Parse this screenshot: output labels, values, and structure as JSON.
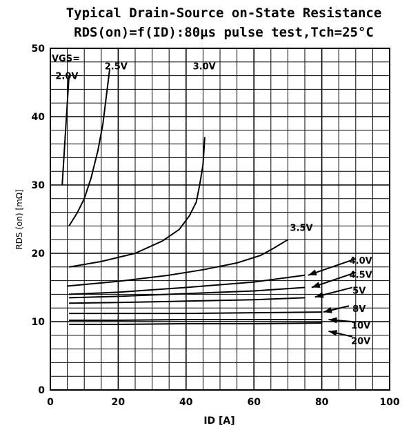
{
  "title_line1": "Typical Drain-Source on-State Resistance",
  "title_line2": "RDS(on)=f(ID):80µs pulse test,Tch=25°C",
  "chart_data": {
    "type": "line",
    "xlabel": "ID [A]",
    "ylabel": "RDS (on)  [mΩ]",
    "xlim": [
      0,
      100
    ],
    "ylim": [
      0,
      50
    ],
    "x_ticks": [
      "0",
      "20",
      "40",
      "60",
      "80",
      "100"
    ],
    "y_ticks": [
      "0",
      "10",
      "20",
      "30",
      "40",
      "50"
    ],
    "x_tick_values": [
      0,
      20,
      40,
      60,
      80,
      100
    ],
    "y_tick_values": [
      0,
      10,
      20,
      30,
      40,
      50
    ],
    "grid": true,
    "vgs_label": "VGS=",
    "series": [
      {
        "name": "2.0V",
        "x": [
          3.5,
          4.5,
          5.5
        ],
        "y": [
          30,
          38,
          46
        ]
      },
      {
        "name": "2.5V",
        "x": [
          5.5,
          8,
          10,
          12,
          14,
          15.5,
          16.5,
          17.5
        ],
        "y": [
          24,
          26,
          28,
          31,
          35,
          39,
          43,
          47
        ]
      },
      {
        "name": "3.0V",
        "x": [
          5.5,
          15,
          25,
          33,
          38,
          41,
          43,
          44,
          45,
          45.5
        ],
        "y": [
          18,
          18.8,
          20,
          21.8,
          23.5,
          25.5,
          27.5,
          30,
          33,
          37
        ]
      },
      {
        "name": "3.5V",
        "x": [
          5,
          20,
          35,
          45,
          55,
          62,
          66,
          70
        ],
        "y": [
          15.2,
          15.9,
          16.8,
          17.6,
          18.6,
          19.7,
          20.8,
          22
        ]
      },
      {
        "name": "4.0V",
        "x": [
          5.5,
          20,
          40,
          60,
          75
        ],
        "y": [
          14,
          14.3,
          15,
          15.8,
          16.8
        ]
      },
      {
        "name": "4.5V",
        "x": [
          5.5,
          20,
          40,
          60,
          75
        ],
        "y": [
          13.5,
          13.7,
          14.1,
          14.5,
          15
        ]
      },
      {
        "name": "5V",
        "x": [
          5.5,
          20,
          40,
          60,
          75
        ],
        "y": [
          12.7,
          12.8,
          13.0,
          13.2,
          13.5
        ]
      },
      {
        "name": "8V",
        "x": [
          5.5,
          20,
          40,
          60,
          80
        ],
        "y": [
          11.2,
          11.2,
          11.2,
          11.3,
          11.4
        ]
      },
      {
        "name": "10V",
        "x": [
          5.5,
          20,
          40,
          60,
          80
        ],
        "y": [
          10.2,
          10.2,
          10.3,
          10.3,
          10.3
        ]
      },
      {
        "name": "20V",
        "x": [
          5.5,
          20,
          40,
          60,
          80
        ],
        "y": [
          9.6,
          9.6,
          9.7,
          9.7,
          9.8
        ]
      }
    ],
    "labels": [
      "2.0V",
      "2.5V",
      "3.0V",
      "3.5V",
      "4.0V",
      "4.5V",
      "5V",
      "8V",
      "10V",
      "20V"
    ]
  }
}
